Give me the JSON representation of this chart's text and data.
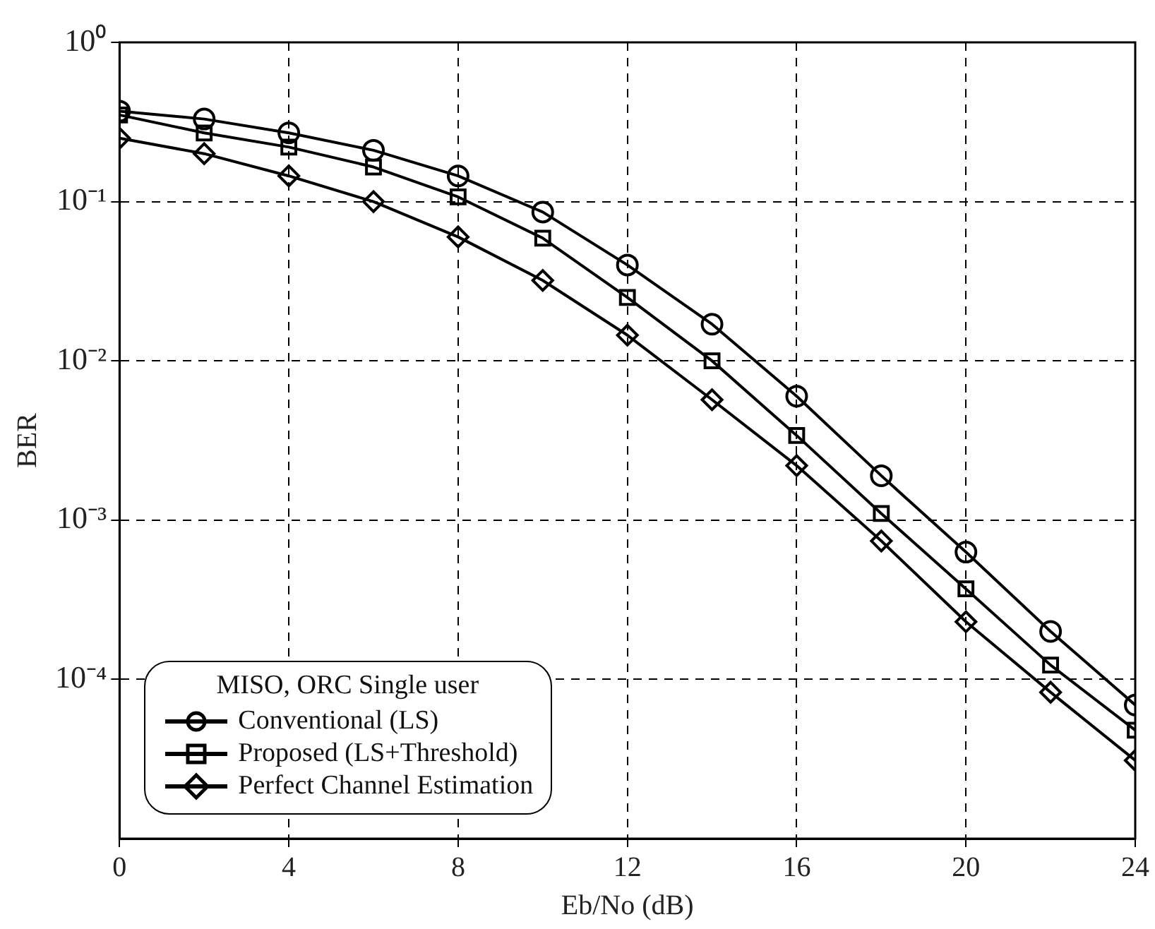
{
  "chart_data": {
    "type": "line",
    "xlabel": "Eb/No (dB)",
    "ylabel": "BER",
    "legend_title": "MISO, ORC Single user",
    "x": [
      0,
      2,
      4,
      6,
      8,
      10,
      12,
      14,
      16,
      18,
      20,
      22,
      24
    ],
    "series": [
      {
        "name": "Conventional (LS)",
        "color": "#000000",
        "marker": "circle",
        "values": [
          0.37,
          0.33,
          0.27,
          0.21,
          0.145,
          0.086,
          0.04,
          0.017,
          0.006,
          0.0019,
          0.00063,
          0.0002,
          6.9e-05
        ]
      },
      {
        "name": "Proposed (LS+Threshold)",
        "color": "#000000",
        "marker": "square",
        "values": [
          0.35,
          0.27,
          0.22,
          0.165,
          0.107,
          0.059,
          0.025,
          0.01,
          0.0034,
          0.0011,
          0.00037,
          0.000123,
          4.8e-05
        ]
      },
      {
        "name": "Perfect Channel Estimation",
        "color": "#000000",
        "marker": "diamond",
        "values": [
          0.25,
          0.2,
          0.145,
          0.1,
          0.06,
          0.032,
          0.0145,
          0.0057,
          0.0022,
          0.00074,
          0.00023,
          8.3e-05,
          3.1e-05
        ]
      }
    ],
    "xlim": [
      0,
      24
    ],
    "xticks": [
      0,
      4,
      8,
      12,
      16,
      20,
      24
    ],
    "ylim": [
      1e-05,
      1
    ],
    "yticks": [
      {
        "value": 1,
        "label": "10⁰"
      },
      {
        "value": 0.1,
        "label": "10⁻¹"
      },
      {
        "value": 0.01,
        "label": "10⁻²"
      },
      {
        "value": 0.001,
        "label": "10⁻³"
      },
      {
        "value": 0.0001,
        "label": "10⁻⁴"
      }
    ],
    "log": "y",
    "grid": true,
    "legend": "bottom left",
    "line_style": "solid"
  }
}
